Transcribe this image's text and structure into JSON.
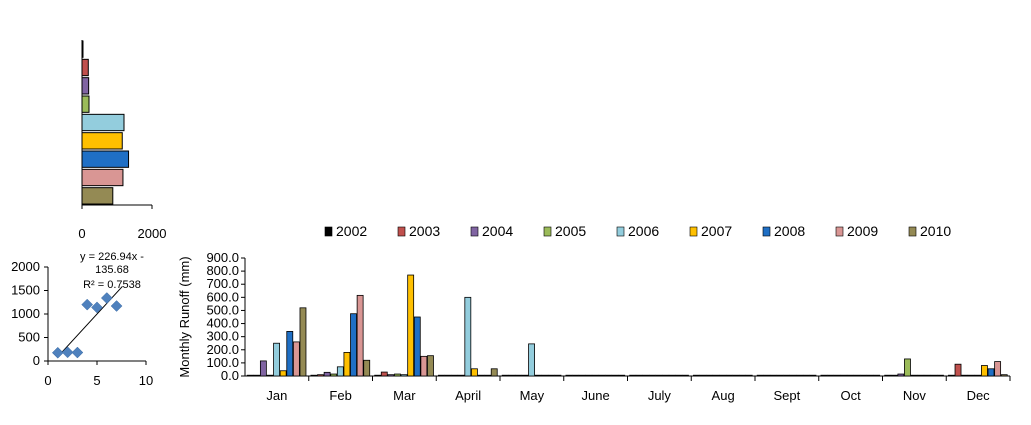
{
  "chart_data": [
    {
      "id": "annual-hbar",
      "type": "bar",
      "orientation": "horizontal",
      "series_names": [
        "2002",
        "2003",
        "2004",
        "2005",
        "2006",
        "2007",
        "2008",
        "2009",
        "2010"
      ],
      "values": [
        8,
        180,
        190,
        200,
        1200,
        1150,
        1330,
        1170,
        880
      ],
      "xlim": [
        0,
        2000
      ],
      "xticks": [
        "0",
        "2000"
      ],
      "grid": false
    },
    {
      "id": "regression-scatter",
      "type": "scatter",
      "x": [
        1,
        2,
        3,
        4,
        5,
        6,
        7
      ],
      "y": [
        175,
        185,
        180,
        1200,
        1140,
        1340,
        1170
      ],
      "xlim": [
        0,
        10
      ],
      "ylim": [
        0,
        2000
      ],
      "xticks": [
        "0",
        "5",
        "10"
      ],
      "yticks": [
        "0",
        "500",
        "1000",
        "1500",
        "2000"
      ],
      "trendline": {
        "slope": 226.94,
        "intercept": -135.68
      },
      "equation_lines": [
        "y = 226.94x -",
        "135.68",
        "R² = 0.7538"
      ],
      "grid": false
    },
    {
      "id": "monthly-runoff",
      "type": "bar",
      "ylabel": "Monthly  Runoff (mm)",
      "ylim": [
        0,
        900
      ],
      "yticks": [
        "0.0",
        "100.0",
        "200.0",
        "300.0",
        "400.0",
        "500.0",
        "600.0",
        "700.0",
        "800.0",
        "900.0"
      ],
      "categories": [
        "Jan",
        "Feb",
        "Mar",
        "April",
        "May",
        "June",
        "July",
        "Aug",
        "Sept",
        "Oct",
        "Nov",
        "Dec"
      ],
      "legend_position": "top",
      "grid": false,
      "series": [
        {
          "name": "2002",
          "color": "#000000",
          "values": [
            2,
            3,
            5,
            2,
            2,
            1,
            1,
            1,
            1,
            1,
            2,
            2
          ]
        },
        {
          "name": "2003",
          "color": "#c0504d",
          "values": [
            3,
            10,
            30,
            3,
            3,
            3,
            2,
            2,
            2,
            2,
            5,
            90
          ]
        },
        {
          "name": "2004",
          "color": "#8064a2",
          "values": [
            115,
            28,
            10,
            5,
            5,
            2,
            2,
            2,
            2,
            2,
            15,
            5
          ]
        },
        {
          "name": "2005",
          "color": "#9bbb59",
          "values": [
            5,
            15,
            15,
            5,
            5,
            3,
            3,
            3,
            3,
            3,
            130,
            5
          ]
        },
        {
          "name": "2006",
          "color": "#93cddd",
          "values": [
            250,
            70,
            10,
            600,
            245,
            5,
            5,
            5,
            5,
            5,
            5,
            5
          ]
        },
        {
          "name": "2007",
          "color": "#ffc000",
          "values": [
            40,
            180,
            770,
            55,
            5,
            3,
            3,
            3,
            3,
            3,
            5,
            80
          ]
        },
        {
          "name": "2008",
          "color": "#1f6fc5",
          "values": [
            340,
            475,
            450,
            5,
            5,
            3,
            3,
            3,
            3,
            3,
            5,
            55
          ]
        },
        {
          "name": "2009",
          "color": "#d99694",
          "values": [
            260,
            615,
            150,
            5,
            5,
            3,
            3,
            3,
            3,
            3,
            5,
            110
          ]
        },
        {
          "name": "2010",
          "color": "#948a54",
          "values": [
            520,
            120,
            155,
            55,
            5,
            3,
            3,
            3,
            3,
            3,
            5,
            10
          ]
        }
      ]
    }
  ]
}
